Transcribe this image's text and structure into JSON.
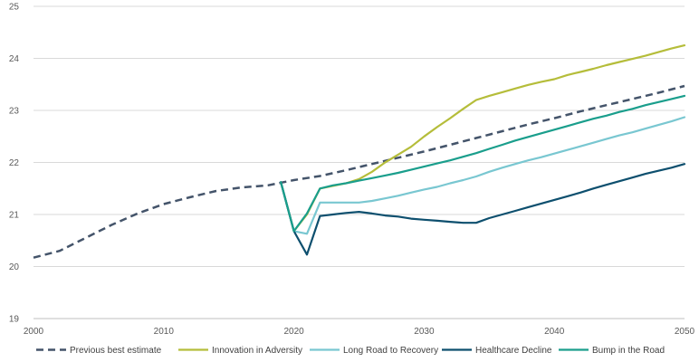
{
  "chart_data": {
    "type": "line",
    "title": "",
    "xlabel": "",
    "ylabel": "",
    "xlim": [
      2000,
      2050
    ],
    "ylim": [
      19,
      25
    ],
    "x_ticks": [
      2000,
      2010,
      2020,
      2030,
      2040,
      2050
    ],
    "y_ticks": [
      19,
      20,
      21,
      22,
      23,
      24,
      25
    ],
    "grid": "horizontal",
    "legend_position": "bottom",
    "series": [
      {
        "name": "Previous best estimate",
        "color": "#44546a",
        "dashed": true,
        "points": [
          [
            2000,
            20.17
          ],
          [
            2002,
            20.3
          ],
          [
            2004,
            20.55
          ],
          [
            2006,
            20.8
          ],
          [
            2008,
            21.02
          ],
          [
            2010,
            21.2
          ],
          [
            2012,
            21.33
          ],
          [
            2014,
            21.45
          ],
          [
            2016,
            21.52
          ],
          [
            2018,
            21.56
          ],
          [
            2020,
            21.66
          ],
          [
            2022,
            21.74
          ],
          [
            2024,
            21.85
          ],
          [
            2026,
            21.97
          ],
          [
            2028,
            22.09
          ],
          [
            2030,
            22.21
          ],
          [
            2032,
            22.34
          ],
          [
            2034,
            22.47
          ],
          [
            2036,
            22.6
          ],
          [
            2038,
            22.73
          ],
          [
            2040,
            22.85
          ],
          [
            2042,
            22.98
          ],
          [
            2044,
            23.1
          ],
          [
            2046,
            23.22
          ],
          [
            2048,
            23.34
          ],
          [
            2050,
            23.47
          ]
        ]
      },
      {
        "name": "Innovation in Adversity",
        "color": "#b5bd3a",
        "dashed": false,
        "points": [
          [
            2019,
            21.62
          ],
          [
            2020,
            20.68
          ],
          [
            2021,
            21.0
          ],
          [
            2022,
            21.5
          ],
          [
            2023,
            21.55
          ],
          [
            2024,
            21.6
          ],
          [
            2025,
            21.68
          ],
          [
            2026,
            21.82
          ],
          [
            2027,
            22.0
          ],
          [
            2028,
            22.15
          ],
          [
            2029,
            22.3
          ],
          [
            2030,
            22.5
          ],
          [
            2031,
            22.68
          ],
          [
            2032,
            22.85
          ],
          [
            2033,
            23.03
          ],
          [
            2034,
            23.2
          ],
          [
            2035,
            23.28
          ],
          [
            2036,
            23.35
          ],
          [
            2037,
            23.42
          ],
          [
            2038,
            23.49
          ],
          [
            2039,
            23.55
          ],
          [
            2040,
            23.6
          ],
          [
            2041,
            23.68
          ],
          [
            2042,
            23.74
          ],
          [
            2043,
            23.8
          ],
          [
            2044,
            23.87
          ],
          [
            2045,
            23.93
          ],
          [
            2046,
            23.99
          ],
          [
            2047,
            24.05
          ],
          [
            2048,
            24.12
          ],
          [
            2049,
            24.19
          ],
          [
            2050,
            24.25
          ]
        ]
      },
      {
        "name": "Long Road to Recovery",
        "color": "#79c7d1",
        "dashed": false,
        "points": [
          [
            2019,
            21.62
          ],
          [
            2020,
            20.68
          ],
          [
            2021,
            20.63
          ],
          [
            2022,
            21.23
          ],
          [
            2023,
            21.23
          ],
          [
            2024,
            21.23
          ],
          [
            2025,
            21.23
          ],
          [
            2026,
            21.26
          ],
          [
            2027,
            21.31
          ],
          [
            2028,
            21.36
          ],
          [
            2029,
            21.42
          ],
          [
            2030,
            21.48
          ],
          [
            2031,
            21.53
          ],
          [
            2032,
            21.6
          ],
          [
            2033,
            21.66
          ],
          [
            2034,
            21.73
          ],
          [
            2035,
            21.82
          ],
          [
            2036,
            21.9
          ],
          [
            2037,
            21.97
          ],
          [
            2038,
            22.04
          ],
          [
            2039,
            22.1
          ],
          [
            2040,
            22.17
          ],
          [
            2041,
            22.24
          ],
          [
            2042,
            22.31
          ],
          [
            2043,
            22.38
          ],
          [
            2044,
            22.45
          ],
          [
            2045,
            22.52
          ],
          [
            2046,
            22.58
          ],
          [
            2047,
            22.65
          ],
          [
            2048,
            22.72
          ],
          [
            2049,
            22.79
          ],
          [
            2050,
            22.87
          ]
        ]
      },
      {
        "name": "Healthcare Decline",
        "color": "#0d4f6e",
        "dashed": false,
        "points": [
          [
            2019,
            21.62
          ],
          [
            2020,
            20.68
          ],
          [
            2021,
            20.23
          ],
          [
            2022,
            20.97
          ],
          [
            2023,
            21.0
          ],
          [
            2024,
            21.03
          ],
          [
            2025,
            21.05
          ],
          [
            2026,
            21.02
          ],
          [
            2027,
            20.98
          ],
          [
            2028,
            20.96
          ],
          [
            2029,
            20.92
          ],
          [
            2030,
            20.9
          ],
          [
            2031,
            20.88
          ],
          [
            2032,
            20.86
          ],
          [
            2033,
            20.84
          ],
          [
            2034,
            20.84
          ],
          [
            2035,
            20.93
          ],
          [
            2036,
            21.0
          ],
          [
            2037,
            21.07
          ],
          [
            2038,
            21.14
          ],
          [
            2039,
            21.21
          ],
          [
            2040,
            21.28
          ],
          [
            2041,
            21.35
          ],
          [
            2042,
            21.42
          ],
          [
            2043,
            21.5
          ],
          [
            2044,
            21.57
          ],
          [
            2045,
            21.64
          ],
          [
            2046,
            21.71
          ],
          [
            2047,
            21.78
          ],
          [
            2048,
            21.84
          ],
          [
            2049,
            21.9
          ],
          [
            2050,
            21.97
          ]
        ]
      },
      {
        "name": "Bump in the Road",
        "color": "#1a9e8c",
        "dashed": false,
        "points": [
          [
            2019,
            21.62
          ],
          [
            2020,
            20.68
          ],
          [
            2021,
            21.02
          ],
          [
            2022,
            21.5
          ],
          [
            2023,
            21.56
          ],
          [
            2024,
            21.6
          ],
          [
            2025,
            21.65
          ],
          [
            2026,
            21.7
          ],
          [
            2027,
            21.75
          ],
          [
            2028,
            21.8
          ],
          [
            2029,
            21.86
          ],
          [
            2030,
            21.92
          ],
          [
            2031,
            21.98
          ],
          [
            2032,
            22.04
          ],
          [
            2033,
            22.11
          ],
          [
            2034,
            22.18
          ],
          [
            2035,
            22.26
          ],
          [
            2036,
            22.34
          ],
          [
            2037,
            22.42
          ],
          [
            2038,
            22.49
          ],
          [
            2039,
            22.56
          ],
          [
            2040,
            22.63
          ],
          [
            2041,
            22.7
          ],
          [
            2042,
            22.77
          ],
          [
            2043,
            22.84
          ],
          [
            2044,
            22.9
          ],
          [
            2045,
            22.97
          ],
          [
            2046,
            23.03
          ],
          [
            2047,
            23.1
          ],
          [
            2048,
            23.16
          ],
          [
            2049,
            23.22
          ],
          [
            2050,
            23.28
          ]
        ]
      }
    ]
  }
}
